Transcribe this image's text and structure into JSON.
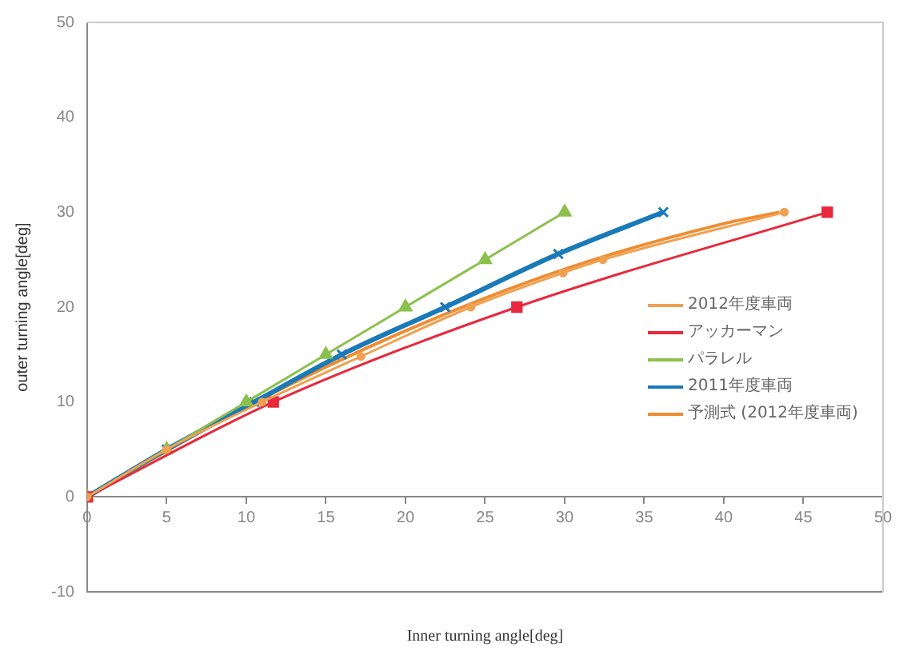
{
  "chart_data": {
    "type": "line",
    "xlabel": "Inner turning angle[deg]",
    "ylabel": "outer turning angle[deg]",
    "xlim": [
      0,
      50
    ],
    "ylim": [
      -10,
      50
    ],
    "xticks": [
      0,
      5,
      10,
      15,
      20,
      25,
      30,
      35,
      40,
      45,
      50
    ],
    "yticks": [
      -10,
      0,
      10,
      20,
      30,
      40,
      50
    ],
    "grid": false,
    "legend": "right",
    "series": [
      {
        "name": "2012年度車両",
        "color": "#f0a050",
        "marker": "circle",
        "x": [
          0,
          5,
          11,
          17.2,
          24.1,
          29.9,
          32.4,
          43.8
        ],
        "values": [
          0,
          5,
          10,
          14.8,
          20,
          23.6,
          25,
          30
        ]
      },
      {
        "name": "アッカーマン",
        "color": "#e8283c",
        "marker": "square",
        "x": [
          0,
          11.7,
          27,
          46.5
        ],
        "values": [
          0,
          10,
          20,
          30
        ]
      },
      {
        "name": "パラレル",
        "color": "#8cc04c",
        "marker": "triangle",
        "x": [
          0,
          5,
          10,
          15,
          20,
          25,
          30
        ],
        "values": [
          0,
          5,
          10,
          15,
          20,
          25,
          30
        ]
      },
      {
        "name": "2011年度車両",
        "color": "#1a7ab8",
        "marker": "cross",
        "x": [
          0,
          5,
          10.5,
          16,
          22.5,
          29.6,
          36.2
        ],
        "values": [
          0,
          5,
          10,
          15,
          20,
          25.6,
          30
        ]
      },
      {
        "name": "予測式 (2012年度車両)",
        "color": "#f08c30",
        "marker": "none",
        "x": [
          0,
          10,
          20,
          30,
          40,
          43.5
        ],
        "values": [
          0,
          9.5,
          17.5,
          24,
          28.8,
          30
        ]
      }
    ]
  }
}
